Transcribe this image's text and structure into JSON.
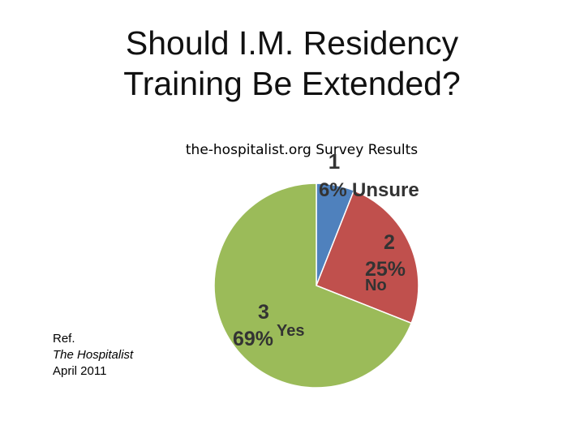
{
  "slide": {
    "title_lines": [
      "Should I.M. Residency",
      "Training Be Extended?"
    ],
    "reference": {
      "prefix": "Ref.",
      "publication": "The Hospitalist",
      "date": "April 2011"
    }
  },
  "chart_data": {
    "type": "pie",
    "title": "the-hospitalist.org Survey Results",
    "slices": [
      {
        "index": "1",
        "label": "Unsure",
        "value": 6,
        "percent_label": "6%",
        "color": "#4f81bd"
      },
      {
        "index": "2",
        "label": "No",
        "value": 25,
        "percent_label": "25%",
        "color": "#c0504d"
      },
      {
        "index": "3",
        "label": "Yes",
        "value": 69,
        "percent_label": "69%",
        "color": "#9bbb59"
      }
    ],
    "legend": "none"
  }
}
